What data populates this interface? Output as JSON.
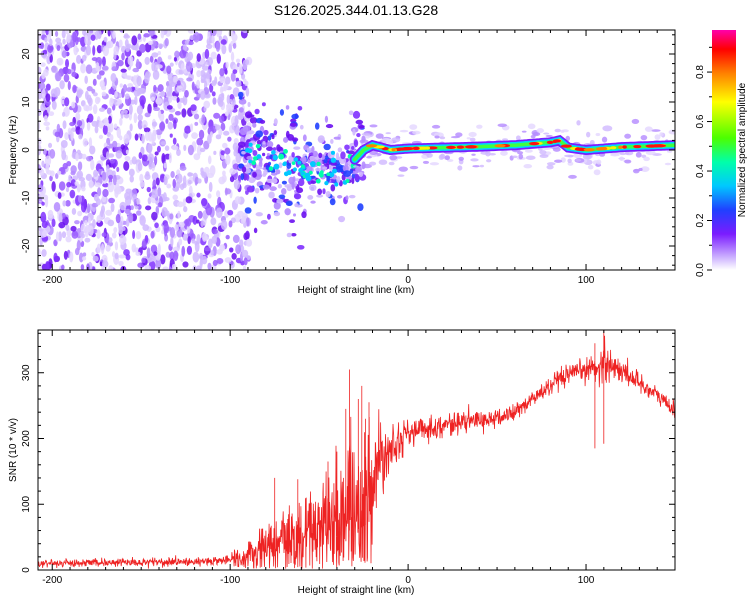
{
  "title": "S126.2025.344.01.13.G28",
  "chart_data": [
    {
      "type": "heatmap",
      "title": "S126.2025.344.01.13.G28",
      "xlabel": "Height of straight line (km)",
      "ylabel": "Frequency (Hz)",
      "xlim": [
        -208,
        150
      ],
      "ylim": [
        -25,
        25
      ],
      "xticks": [
        -200,
        -100,
        0,
        100
      ],
      "yticks": [
        -20,
        -10,
        0,
        10,
        20
      ],
      "colorbar": {
        "label": "Normalized spectral amplitude",
        "range": [
          0.0,
          0.97
        ],
        "ticks": [
          0.0,
          0.2,
          0.4,
          0.6,
          0.8
        ],
        "tick_labels": [
          "0.0",
          "0.2",
          "0.4",
          "0.6",
          "0.8"
        ],
        "colormap": [
          "#ffffff",
          "#cfb6ff",
          "#7b1cff",
          "#2040ff",
          "#00c8ff",
          "#00ffaa",
          "#4cff00",
          "#ffff00",
          "#ff8000",
          "#ff0000",
          "#ff00aa"
        ]
      },
      "features": {
        "noise_region_km": [
          -208,
          -95
        ],
        "scattered_region_km": [
          -95,
          -30
        ],
        "line_frequency_hz": [
          [
            -95,
            1
          ],
          [
            -85,
            -1
          ],
          [
            -75,
            -2
          ],
          [
            -65,
            -3
          ],
          [
            -55,
            -3.5
          ],
          [
            -45,
            -4
          ],
          [
            -35,
            -5
          ],
          [
            -30,
            -2
          ],
          [
            -25,
            0
          ],
          [
            -20,
            1
          ],
          [
            -10,
            0
          ],
          [
            0,
            0.3
          ],
          [
            20,
            0.5
          ],
          [
            40,
            0.7
          ],
          [
            60,
            1
          ],
          [
            80,
            1.6
          ],
          [
            85,
            2
          ],
          [
            90,
            0.5
          ],
          [
            100,
            0
          ],
          [
            120,
            0.6
          ],
          [
            150,
            1
          ]
        ]
      }
    },
    {
      "type": "line",
      "xlabel": "Height of straight line (km)",
      "ylabel": "SNR (10 * v/v)",
      "xlim": [
        -208,
        150
      ],
      "ylim": [
        0,
        365
      ],
      "xticks": [
        -200,
        -100,
        0,
        100
      ],
      "yticks": [
        0,
        100,
        200,
        300
      ],
      "series_color": "#ee2222",
      "trend": [
        [
          -208,
          10
        ],
        [
          -160,
          12
        ],
        [
          -120,
          13
        ],
        [
          -100,
          15
        ],
        [
          -90,
          22
        ],
        [
          -80,
          30
        ],
        [
          -70,
          40
        ],
        [
          -60,
          55
        ],
        [
          -50,
          70
        ],
        [
          -40,
          85
        ],
        [
          -35,
          100
        ],
        [
          -30,
          100
        ],
        [
          -25,
          110
        ],
        [
          -20,
          130
        ],
        [
          -18,
          155
        ],
        [
          -15,
          175
        ],
        [
          -10,
          190
        ],
        [
          -5,
          200
        ],
        [
          0,
          208
        ],
        [
          10,
          215
        ],
        [
          20,
          220
        ],
        [
          30,
          225
        ],
        [
          40,
          228
        ],
        [
          50,
          230
        ],
        [
          60,
          240
        ],
        [
          70,
          260
        ],
        [
          80,
          280
        ],
        [
          90,
          295
        ],
        [
          100,
          305
        ],
        [
          108,
          310
        ],
        [
          110,
          320
        ],
        [
          115,
          310
        ],
        [
          125,
          295
        ],
        [
          135,
          275
        ],
        [
          145,
          255
        ],
        [
          150,
          240
        ]
      ],
      "noise_scale": [
        [
          -208,
          5
        ],
        [
          -100,
          6
        ],
        [
          -90,
          25
        ],
        [
          -80,
          40
        ],
        [
          -60,
          50
        ],
        [
          -40,
          80
        ],
        [
          -30,
          90
        ],
        [
          -20,
          70
        ],
        [
          -10,
          35
        ],
        [
          0,
          18
        ],
        [
          50,
          12
        ],
        [
          100,
          15
        ],
        [
          110,
          30
        ],
        [
          120,
          15
        ],
        [
          150,
          12
        ]
      ],
      "spikes": [
        [
          -75,
          140
        ],
        [
          -62,
          138
        ],
        [
          -45,
          165
        ],
        [
          -40,
          180
        ],
        [
          -35,
          245
        ],
        [
          -33,
          305
        ],
        [
          -28,
          260
        ],
        [
          -26,
          280
        ],
        [
          -24,
          230
        ],
        [
          -22,
          255
        ],
        [
          105,
          345
        ],
        [
          110,
          368
        ]
      ]
    }
  ]
}
